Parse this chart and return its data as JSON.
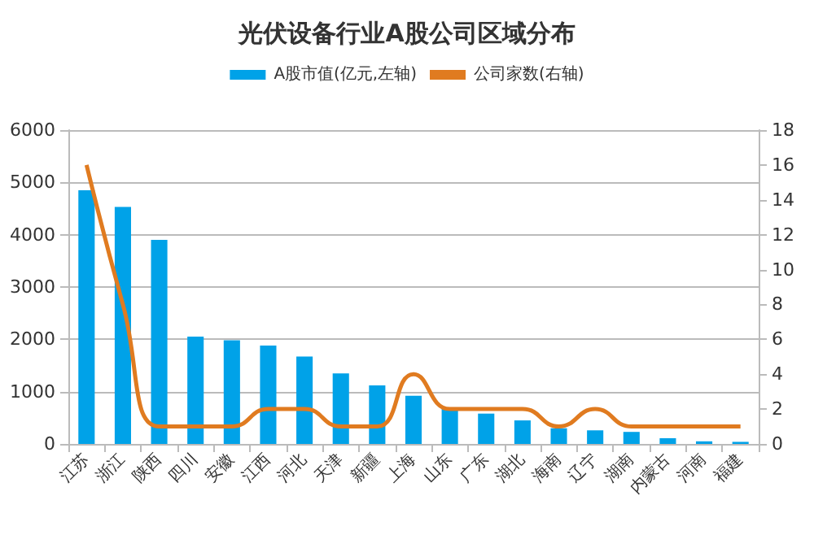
{
  "chart_data": {
    "type": "bar",
    "title": "光伏设备行业A股公司区域分布",
    "categories": [
      "江苏",
      "浙江",
      "陕西",
      "四川",
      "安徽",
      "江西",
      "河北",
      "天津",
      "新疆",
      "上海",
      "山东",
      "广东",
      "湖北",
      "海南",
      "辽宁",
      "湖南",
      "内蒙古",
      "河南",
      "福建"
    ],
    "series": [
      {
        "name": "A股市值(亿元,左轴)",
        "color": "#00a2e8",
        "values": [
          4850,
          4530,
          3900,
          2050,
          1980,
          1880,
          1670,
          1350,
          1120,
          920,
          680,
          580,
          450,
          300,
          260,
          230,
          110,
          50,
          40
        ]
      },
      {
        "name": "公司家数(右轴)",
        "type": "line",
        "axis": "y2",
        "color": "#e07b20",
        "values": [
          16,
          8,
          1,
          1,
          1,
          2,
          2,
          1,
          1,
          4,
          2,
          2,
          2,
          1,
          2,
          1,
          1,
          1,
          1
        ]
      }
    ],
    "ylim": [
      0,
      6000
    ],
    "yticks": [
      0,
      1000,
      2000,
      3000,
      4000,
      5000,
      6000
    ],
    "y2lim": [
      0,
      18
    ],
    "y2ticks": [
      0,
      2,
      4,
      6,
      8,
      10,
      12,
      14,
      16,
      18
    ],
    "grid": "y",
    "legend": "top",
    "marker": "none"
  }
}
